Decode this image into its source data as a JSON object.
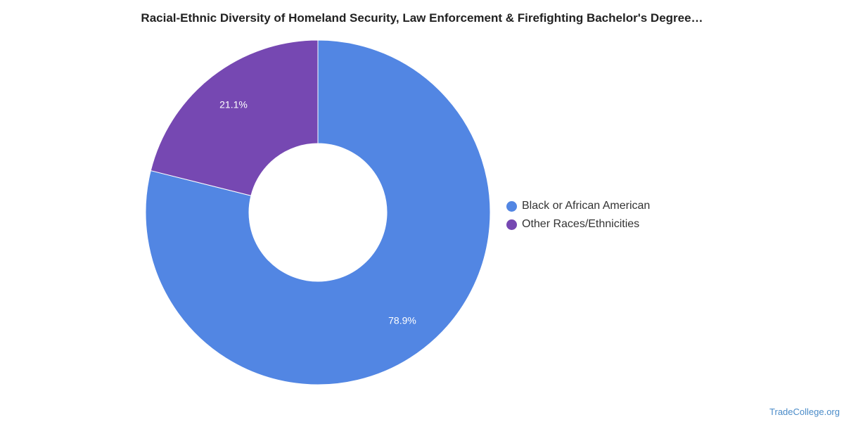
{
  "chart_data": {
    "type": "pie",
    "donut": true,
    "title": "Racial-Ethnic Diversity of Homeland Security, Law Enforcement & Firefighting Bachelor's Degree…",
    "slices": [
      {
        "label": "Black or African American",
        "value": 78.9,
        "display": "78.9%",
        "color": "#5286e3"
      },
      {
        "label": "Other Races/Ethnicities",
        "value": 21.1,
        "display": "21.1%",
        "color": "#7648b2"
      }
    ],
    "legend_position": "right"
  },
  "watermark": "TradeCollege.org"
}
